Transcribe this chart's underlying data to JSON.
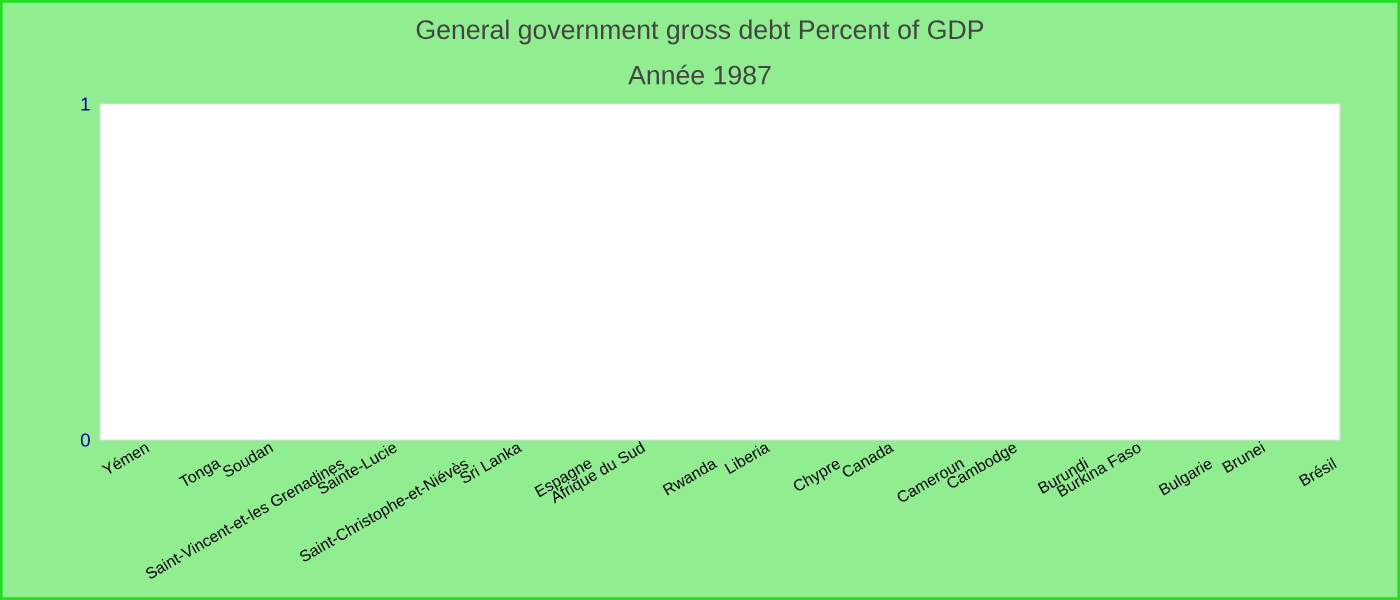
{
  "chart_data": {
    "type": "bar",
    "title": "General government gross debt  Percent of GDP",
    "subtitle": "Année 1987",
    "categories": [
      "Yémen",
      "Tonga",
      "Soudan",
      "Saint-Vincent-et-les Grenadines",
      "Sainte-Lucie",
      "Saint-Christophe-et-Niévès",
      "Sri Lanka",
      "Espagne",
      "Afrique du Sud",
      "Rwanda",
      "Liberia",
      "Chypre",
      "Canada",
      "Cameroun",
      "Cambodge",
      "Burundi",
      "Burkina Faso",
      "Bulgarie",
      "Brunei",
      "Brésil"
    ],
    "values": [
      null,
      null,
      null,
      null,
      null,
      null,
      null,
      null,
      null,
      null,
      null,
      null,
      null,
      null,
      null,
      null,
      null,
      null,
      null,
      null
    ],
    "ylim": [
      0,
      1
    ],
    "yticks": [
      0,
      1
    ]
  }
}
